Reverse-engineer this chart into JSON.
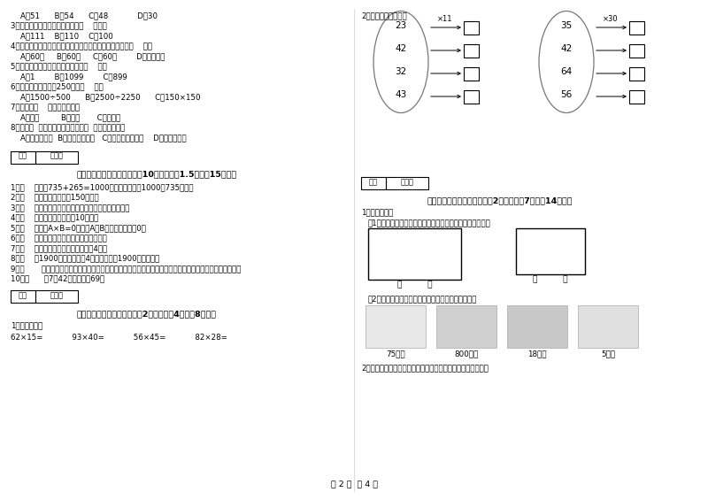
{
  "bg_color": "#ffffff",
  "text_color": "#000000",
  "page_num": "第 2 页  共 4 页",
  "left_col_lines": [
    "    A．51      B．54      C．48            D．30",
    "3．最大的三位数是最大一位数的（    ）倍。",
    "    A．111    B．110    C．100",
    "4．时针从上一个数字到相邻的下一个数字，经过的时间是（    ）。",
    "    A．60秒     B．60分     C．60时        D．无法确定",
    "5．最小三位数和最大三位数的和是（    ）。",
    "    A．1        B．1099        C．899",
    "6．下面的结果刚好是250的是（    ）。",
    "    A．1500÷500      B．2500÷2250      C．150×150",
    "7．四边形（    ）平行四边形。",
    "    A．一定         B．可能       C．不可能",
    "8．明天（  ）会下雨，今天下午我（  ）能遇全世界。",
    "    A．一定，可能  B．可能，不可能   C．不可能，不可能    D．可能，可能"
  ],
  "score_box_text": [
    "得分",
    "评卷人"
  ],
  "section3_header": "三、仔细推敲，正确判断（共10小题，每题1.5分，共15分）。",
  "judge_items": [
    "1．（    ）根据735+265=1000，可以直接写出1000－735的差。",
    "2．（    ）一本故事书约重150千克。",
    "3．（    ）所有的大月都是单月，所有的小月都是双月。",
    "4．（    ）小明家客厅面积是10公顷。",
    "5．（    ）如果A×B=0，那么A和B中至少有一个是0。",
    "6．（    ）小明面对着东方时，背对着西方。",
    "7．（    ）正方形的周长是它的边长的4倍。",
    "8．（    ）1900年的年份数是4的倍数，所以1900年是闰年。",
    "9．（       ）用同一条铁丝先围成一个最大的正方形，再围成一个最大的长方形，长方形和正方形的周长相等。",
    "10．（      ）7个42相加的和是69。"
  ],
  "section4_header": "四、看清题目，细心计算（共2小题，每题4分，共8分）。",
  "calc_label": "1．竖式计算。",
  "calc_items": "62×15=            93×40=            56×45=            82×28=",
  "section2_label": "2．算一算，填一填。",
  "oval1_numbers": [
    "23",
    "42",
    "32",
    "43"
  ],
  "oval1_op": "×11",
  "oval2_numbers": [
    "35",
    "42",
    "64",
    "56"
  ],
  "oval2_op": "×30",
  "section5_header": "五、认真思考，综合能力（共2小题，每题7分，共14分）。",
  "practice_label": "1．实践操作：",
  "measure_label": "（1）、量出下面各图形中每条边的长度。（以毫米为单位）",
  "bracket_label": "（          ）",
  "connect_label": "（2）、把每小时行的路程与合适的出行方式连起来。",
  "transport_speeds": [
    "75千米",
    "800千米",
    "18千米",
    "5千米"
  ],
  "weather_label": "2．下面是气温自测仪上记录的某天四个不同时间的气温情况："
}
